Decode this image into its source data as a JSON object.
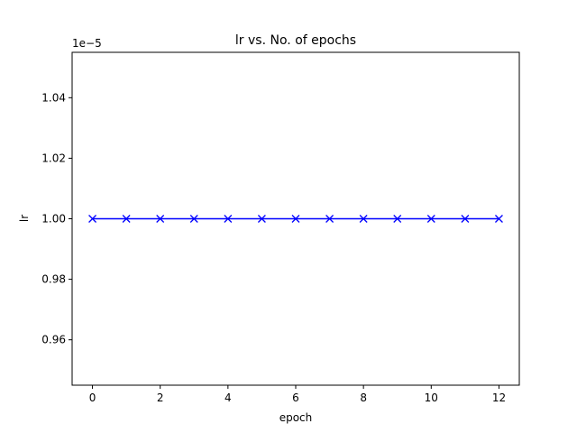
{
  "chart_data": {
    "type": "line",
    "title": "lr vs. No. of epochs",
    "xlabel": "epoch",
    "ylabel": "lr",
    "y_offset_label": "1e−5",
    "x": [
      0,
      1,
      2,
      3,
      4,
      5,
      6,
      7,
      8,
      9,
      10,
      11,
      12
    ],
    "series": [
      {
        "values": [
          1e-05,
          1e-05,
          1e-05,
          1e-05,
          1e-05,
          1e-05,
          1e-05,
          1e-05,
          1e-05,
          1e-05,
          1e-05,
          1e-05,
          1e-05
        ],
        "color": "#0000ff",
        "marker": "x"
      }
    ],
    "xlim": [
      -0.6,
      12.6
    ],
    "ylim": [
      9.45e-06,
      1.055e-05
    ],
    "x_ticks": [
      0,
      2,
      4,
      6,
      8,
      10,
      12
    ],
    "x_tick_labels": [
      "0",
      "2",
      "4",
      "6",
      "8",
      "10",
      "12"
    ],
    "y_ticks": [
      9.6e-06,
      9.8e-06,
      1e-05,
      1.02e-05,
      1.04e-05
    ],
    "y_tick_labels": [
      "0.96",
      "0.98",
      "1.00",
      "1.02",
      "1.04"
    ],
    "grid": false,
    "legend": "none"
  }
}
